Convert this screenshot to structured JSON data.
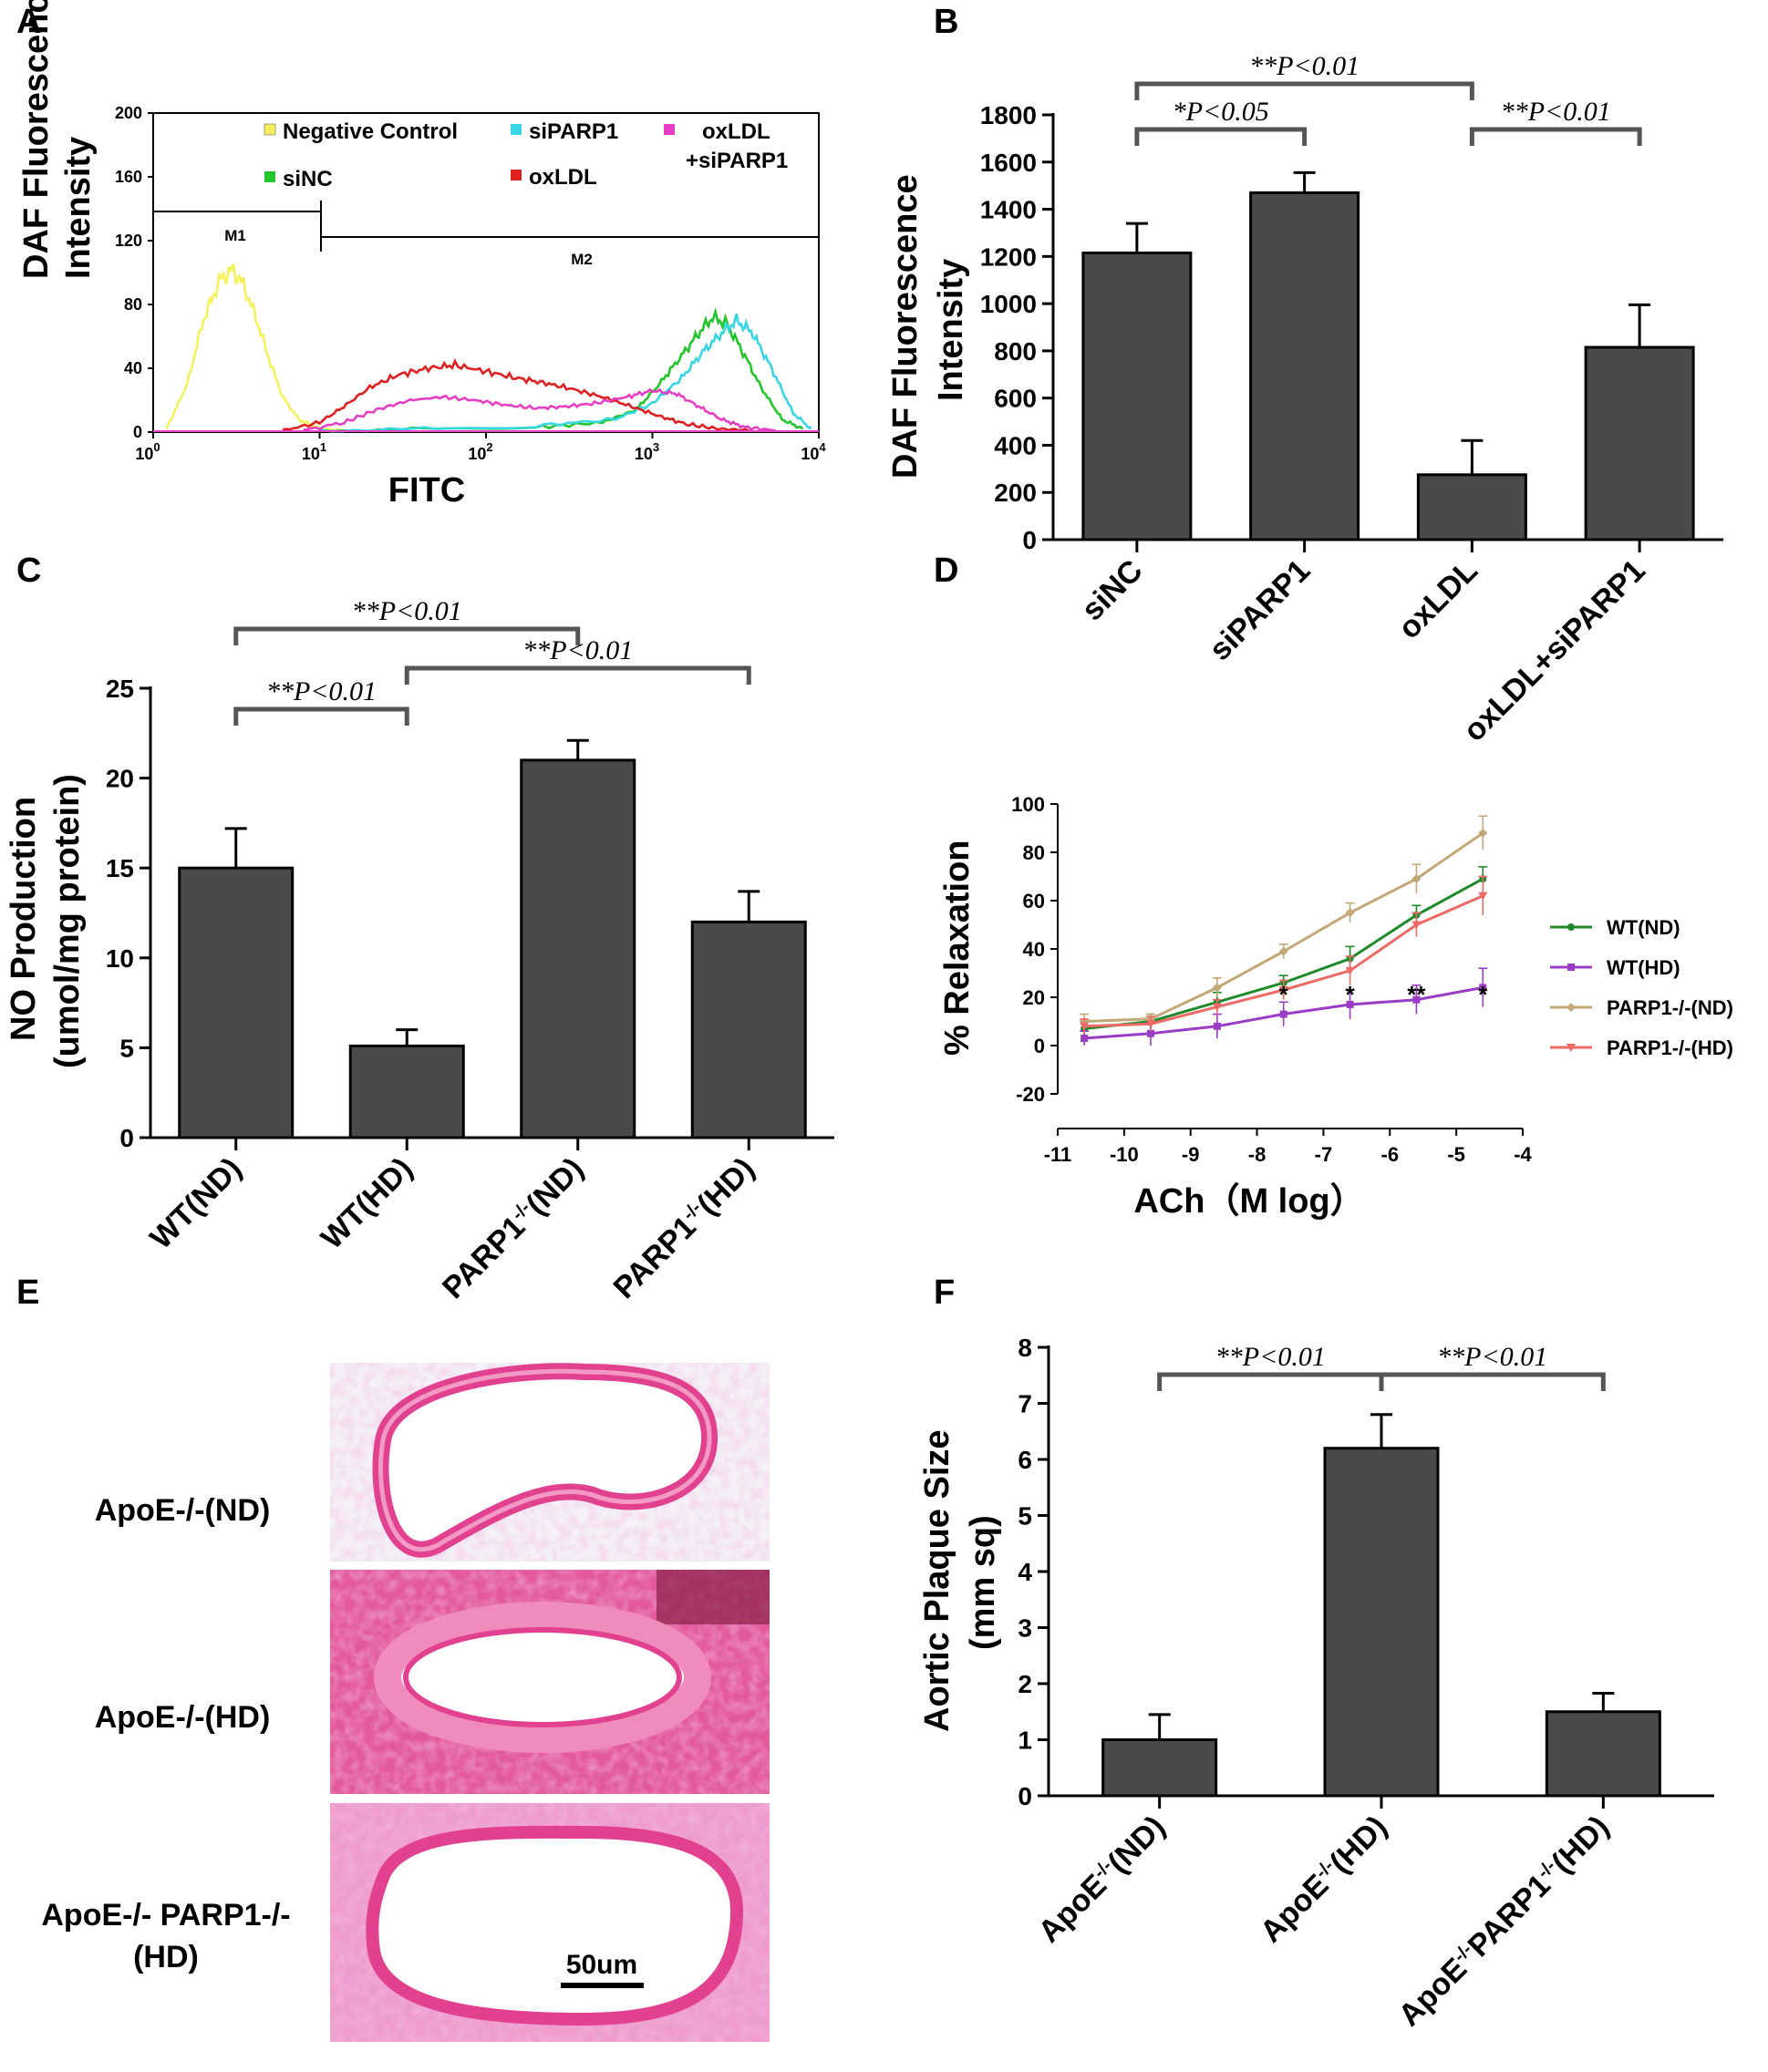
{
  "panel_labels": [
    "A",
    "B",
    "C",
    "D",
    "E",
    "F"
  ],
  "chart_data": [
    {
      "panel": "A",
      "type": "line",
      "title": "",
      "xlabel": "FITC",
      "ylabel": "DAF Fluorescence Intensity",
      "xscale": "log",
      "xlim": [
        1,
        10000
      ],
      "ylim": [
        0,
        200
      ],
      "yticks": [
        "0",
        "40",
        "80",
        "120",
        "160",
        "200"
      ],
      "xticks": [
        {
          "base": "10",
          "exp": "0"
        },
        {
          "base": "10",
          "exp": "1"
        },
        {
          "base": "10",
          "exp": "2"
        },
        {
          "base": "10",
          "exp": "3"
        },
        {
          "base": "10",
          "exp": "4"
        }
      ],
      "markers": [
        "M1",
        "M2"
      ],
      "legend": [
        {
          "label": "Negative Control",
          "color": "#f4f15a"
        },
        {
          "label": "siNC",
          "color": "#22c52a"
        },
        {
          "label": "siPARP1",
          "color": "#38d6e4"
        },
        {
          "label": "oxLDL",
          "color": "#e02020"
        },
        {
          "label": "oxLDL",
          "label2": "+siPARP1",
          "color": "#e63fc4"
        }
      ],
      "series": [
        {
          "name": "Negative Control",
          "color": "#f4f15a",
          "x": [
            1.2,
            1.6,
            2.0,
            2.5,
            3.0,
            3.5,
            4.2,
            5.0,
            6.0,
            7.5,
            10,
            14
          ],
          "y": [
            2,
            30,
            70,
            95,
            102,
            92,
            70,
            45,
            22,
            8,
            2,
            1
          ]
        },
        {
          "name": "siNC",
          "color": "#22c52a",
          "x": [
            10,
            50,
            200,
            500,
            800,
            1100,
            1500,
            1900,
            2300,
            2800,
            3500,
            4500,
            6000,
            8000
          ],
          "y": [
            1,
            2,
            3,
            6,
            14,
            30,
            48,
            62,
            72,
            68,
            50,
            28,
            8,
            2
          ]
        },
        {
          "name": "siPARP1",
          "color": "#38d6e4",
          "x": [
            10,
            50,
            200,
            600,
            1000,
            1500,
            2000,
            2600,
            3200,
            4000,
            5200,
            7000,
            9000
          ],
          "y": [
            1,
            2,
            4,
            8,
            18,
            34,
            50,
            62,
            70,
            62,
            40,
            12,
            2
          ]
        },
        {
          "name": "oxLDL",
          "color": "#e02020",
          "x": [
            6,
            10,
            14,
            20,
            30,
            45,
            65,
            100,
            150,
            220,
            330,
            500,
            750,
            1100,
            1600,
            2500,
            4000
          ],
          "y": [
            1,
            6,
            16,
            28,
            36,
            40,
            42,
            38,
            34,
            31,
            27,
            22,
            16,
            10,
            5,
            2,
            1
          ]
        },
        {
          "name": "oxLDL+siPARP1",
          "color": "#e63fc4",
          "x": [
            8,
            14,
            22,
            35,
            55,
            85,
            130,
            200,
            300,
            450,
            700,
            1000,
            1400,
            1900,
            2600,
            3600,
            5500
          ],
          "y": [
            1,
            6,
            14,
            20,
            22,
            20,
            17,
            15,
            16,
            18,
            22,
            26,
            24,
            16,
            8,
            3,
            1
          ]
        }
      ]
    },
    {
      "panel": "B",
      "type": "bar",
      "title": "",
      "xlabel": "",
      "ylabel": "DAF Fluorescence Intensity",
      "categories": [
        "siNC",
        "siPARP1",
        "oxLDL",
        "oxLDL+siPARP1"
      ],
      "values": [
        1215,
        1470,
        275,
        815
      ],
      "errors": [
        125,
        85,
        145,
        180
      ],
      "ylim": [
        0,
        1800
      ],
      "yticks": [
        "0",
        "200",
        "400",
        "600",
        "800",
        "1000",
        "1200",
        "1400",
        "1600",
        "1800"
      ],
      "significance": [
        {
          "from": 0,
          "to": 1,
          "label": "*P<0.05"
        },
        {
          "from": 0,
          "to": 2,
          "label": "**P<0.01"
        },
        {
          "from": 2,
          "to": 3,
          "label": "**P<0.01"
        }
      ]
    },
    {
      "panel": "C",
      "type": "bar",
      "title": "",
      "xlabel": "",
      "ylabel": "NO Production",
      "ylabel2": "(umol/mg protein)",
      "categories": [
        {
          "pre": "WT(ND)",
          "sup": "",
          "post": ""
        },
        {
          "pre": "WT(HD)",
          "sup": "",
          "post": ""
        },
        {
          "pre": "PARP1",
          "sup": "-/-",
          "post": "(ND)"
        },
        {
          "pre": "PARP1",
          "sup": "-/-",
          "post": "(HD)"
        }
      ],
      "values": [
        15.0,
        5.1,
        21.0,
        12.0
      ],
      "errors": [
        2.2,
        0.9,
        1.1,
        1.7
      ],
      "ylim": [
        0,
        25
      ],
      "yticks": [
        "0",
        "5",
        "10",
        "15",
        "20",
        "25"
      ],
      "significance": [
        {
          "from": 0,
          "to": 1,
          "label": "**P<0.01"
        },
        {
          "from": 0,
          "to": 2,
          "label": "**P<0.01"
        },
        {
          "from": 1,
          "to": 3,
          "label": "**P<0.01"
        }
      ]
    },
    {
      "panel": "D",
      "type": "line",
      "title": "",
      "xlabel": "ACh（M log）",
      "ylabel": "% Relaxation",
      "xlim": [
        -11,
        -4
      ],
      "ylim": [
        -20,
        100
      ],
      "xticks": [
        "-11",
        "-10",
        "-9",
        "-8",
        "-7",
        "-6",
        "-5",
        "-4"
      ],
      "yticks": [
        "-20",
        "0",
        "20",
        "40",
        "60",
        "80",
        "100"
      ],
      "x": [
        -10.6,
        -9.6,
        -8.6,
        -7.6,
        -6.6,
        -5.6,
        -4.6
      ],
      "series": [
        {
          "name": "WT(ND)",
          "color": "#1e8a2a",
          "marker": "circle",
          "values": [
            7,
            10,
            18,
            26,
            36,
            54,
            69
          ],
          "errors": [
            3,
            3,
            4,
            3,
            5,
            4,
            5
          ]
        },
        {
          "name": "WT(HD)",
          "color": "#9a3cc6",
          "marker": "square",
          "values": [
            3,
            5,
            8,
            13,
            17,
            19,
            24
          ],
          "errors": [
            3,
            5,
            5,
            5,
            6,
            6,
            8
          ]
        },
        {
          "name": "PARP1-/-(ND)",
          "color": "#c2a876",
          "marker": "diamond",
          "values": [
            10,
            11,
            24,
            39,
            55,
            69,
            88
          ],
          "errors": [
            3,
            2,
            4,
            3,
            4,
            6,
            7
          ]
        },
        {
          "name": "PARP1-/-(HD)",
          "color": "#ee6a66",
          "marker": "triangle-down",
          "values": [
            8,
            9,
            16,
            23,
            31,
            50,
            62
          ],
          "errors": [
            3,
            3,
            3,
            4,
            6,
            5,
            8
          ]
        }
      ],
      "significance_marks": [
        {
          "x": -7.6,
          "label": "*"
        },
        {
          "x": -6.6,
          "label": "*"
        },
        {
          "x": -5.6,
          "label": "**"
        },
        {
          "x": -4.6,
          "label": "*"
        }
      ]
    },
    {
      "panel": "F",
      "type": "bar",
      "title": "",
      "xlabel": "",
      "ylabel": "Aortic Plaque Size",
      "ylabel2": "(mm sq)",
      "categories": [
        {
          "pre": "ApoE",
          "sup": "-/-",
          "post": "(ND)"
        },
        {
          "pre": "ApoE",
          "sup": "-/-",
          "post": "(HD)"
        },
        {
          "pre": "ApoE",
          "sup": "-/-",
          "post": "PARP1",
          "sup2": "-/-",
          "post2": "(HD)"
        }
      ],
      "values": [
        1.0,
        6.2,
        1.5
      ],
      "errors": [
        0.45,
        0.6,
        0.33
      ],
      "ylim": [
        0,
        8
      ],
      "yticks": [
        "0",
        "1",
        "2",
        "3",
        "4",
        "5",
        "6",
        "7",
        "8"
      ],
      "significance": [
        {
          "from": 0,
          "to": 1,
          "label": "**P<0.01"
        },
        {
          "from": 1,
          "to": 2,
          "label": "**P<0.01"
        }
      ]
    }
  ],
  "panel_e": {
    "rows": [
      {
        "label": "ApoE-/-(ND)"
      },
      {
        "label": "ApoE-/-(HD)"
      },
      {
        "label": "ApoE-/- PARP1-/-",
        "label2": "(HD)"
      }
    ],
    "scale_bar": "50um"
  },
  "colors": {
    "bar_fill": "#4a4a4a",
    "axis": "#000000",
    "tissue": "#e2418f"
  }
}
